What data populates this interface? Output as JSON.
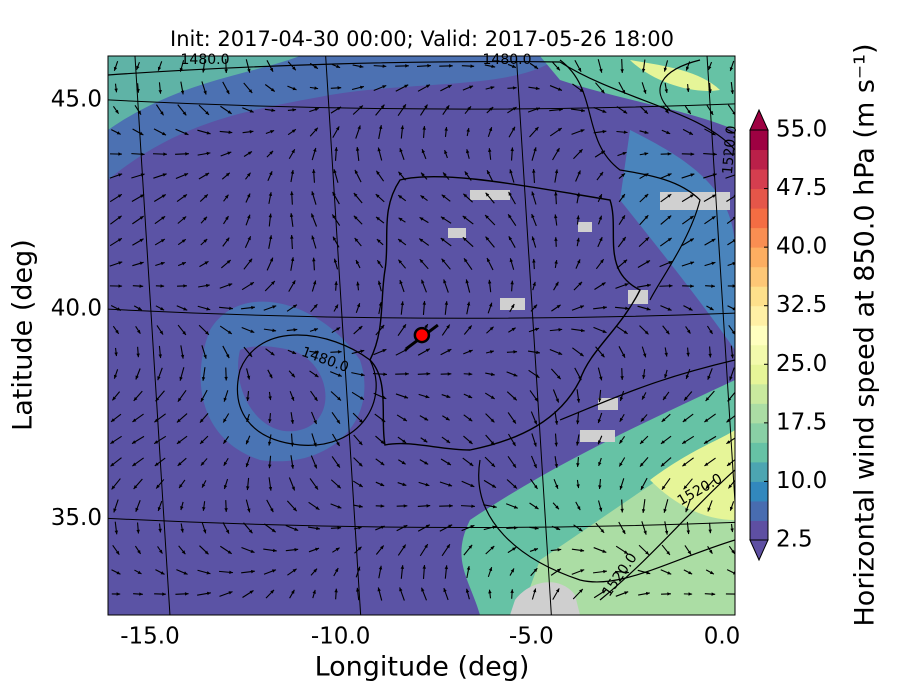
{
  "chart_data": {
    "type": "map",
    "title": "Init: 2017-04-30 00:00; Valid: 2017-05-26 18:00",
    "xlabel": "Longitude (deg)",
    "ylabel": "Latitude (deg)",
    "xlim": [
      -16.1,
      0.34
    ],
    "ylim": [
      32.69,
      46.05
    ],
    "xticks": [
      {
        "value": -15,
        "label": "-15.0"
      },
      {
        "value": -10,
        "label": "-10.0"
      },
      {
        "value": -5,
        "label": "-5.0"
      },
      {
        "value": 0,
        "label": "0.0"
      }
    ],
    "yticks": [
      {
        "value": 35,
        "label": "35.0"
      },
      {
        "value": 40,
        "label": "40.0"
      },
      {
        "value": 45,
        "label": "45.0"
      }
    ],
    "grid": true,
    "marker": {
      "lon": -7.87,
      "lat": 39.38,
      "color": "#ff0000"
    },
    "contour_labels": [
      "1480.0",
      "1480.0",
      "1480.0",
      "1520.0",
      "1520.0",
      "1520.0"
    ],
    "colorbar": {
      "label": "Horizontal wind speed at 850.0 hPa (m s⁻¹)",
      "lim": [
        2.5,
        55
      ],
      "ticks": [
        2.5,
        {
          "value": 10,
          "label": "10.0"
        },
        {
          "value": 17.5,
          "label": "17.5"
        },
        {
          "value": 25,
          "label": "25.0"
        },
        {
          "value": 32.5,
          "label": "32.5"
        },
        {
          "value": 40,
          "label": "40.0"
        },
        {
          "value": 47.5,
          "label": "47.5"
        },
        {
          "value": 55,
          "label": "55.0"
        }
      ],
      "colormap": [
        "#5e4fa2",
        "#3288bd",
        "#66c2a5",
        "#abdda4",
        "#e6f598",
        "#ffffbf",
        "#fee08b",
        "#fdae61",
        "#f46d43",
        "#d53e4f",
        "#9e0142"
      ]
    }
  }
}
